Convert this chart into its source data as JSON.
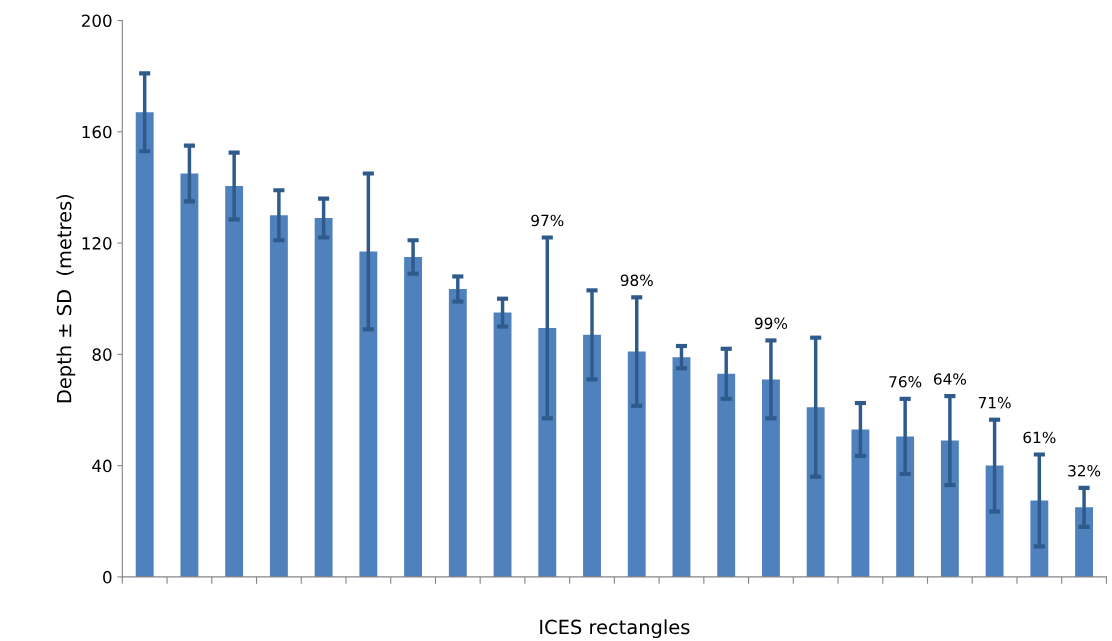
{
  "chart_data": {
    "type": "bar",
    "xlabel": "ICES rectangles",
    "ylabel": "Depth ± SD  (metres)",
    "categories": [
      null,
      null,
      null,
      null,
      null,
      null,
      null,
      null,
      null,
      null,
      null,
      null,
      null,
      null,
      null,
      null,
      null,
      null,
      null,
      null,
      null,
      null
    ],
    "values": [
      167,
      145,
      140.5,
      130,
      129,
      117,
      115,
      103.5,
      95,
      89.5,
      87,
      81,
      79,
      73,
      71,
      61,
      53,
      50.5,
      49,
      40,
      27.5,
      25
    ],
    "errors": [
      14,
      10,
      12,
      9,
      7,
      28,
      6,
      4.5,
      5,
      32.5,
      16,
      19.5,
      4,
      9,
      14,
      25,
      9.5,
      13.5,
      16,
      16.5,
      16.5,
      7
    ],
    "annotations": [
      {
        "text": "97%",
        "y": 122
      },
      {
        "text": "98%",
        "y": 100.5
      },
      {
        "text": "99%",
        "y": 85
      },
      {
        "text": "76%",
        "y": 64
      },
      {
        "text": "64%",
        "y": 65
      },
      {
        "text": "71%",
        "y": 56.5
      },
      {
        "text": "61%",
        "y": 44
      },
      {
        "text": "32%",
        "y": 32
      }
    ],
    "color": "#4f81bd",
    "ylim": [
      0,
      200
    ],
    "yticks": [
      0,
      40,
      80,
      120,
      160,
      200
    ],
    "grid": false,
    "legend": false
  }
}
